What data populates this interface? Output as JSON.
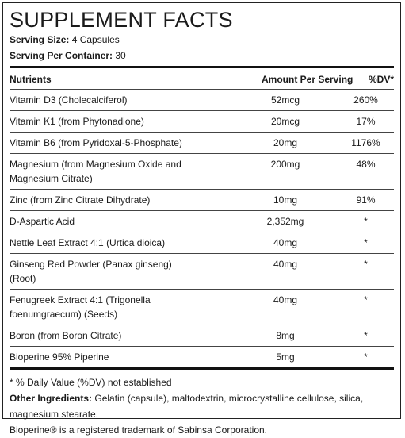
{
  "title": "SUPPLEMENT FACTS",
  "serving": [
    {
      "label": "Serving Size:",
      "value": "4 Capsules"
    },
    {
      "label": "Serving Per Container:",
      "value": "30"
    }
  ],
  "table": {
    "header": [
      "Nutrients",
      "Amount Per Serving",
      "%DV*"
    ],
    "rows": [
      [
        "Vitamin D3 (Cholecalciferol)",
        "52mcg",
        "260%"
      ],
      [
        "Vitamin K1 (from Phytonadione)",
        "20mcg",
        "17%"
      ],
      [
        "Vitamin B6 (from Pyridoxal-5-Phosphate)",
        "20mg",
        "1176%"
      ],
      [
        "Magnesium (from Magnesium Oxide and Magnesium Citrate)",
        "200mg",
        "48%"
      ],
      [
        "Zinc (from Zinc Citrate Dihydrate)",
        "10mg",
        "91%"
      ],
      [
        "D-Aspartic Acid",
        "2,352mg",
        "*"
      ],
      [
        "Nettle Leaf Extract 4:1 (Urtica dioica)",
        "40mg",
        "*"
      ],
      [
        "Ginseng Red Powder (Panax ginseng)(Root)",
        "40mg",
        "*"
      ],
      [
        "Fenugreek Extract 4:1 (Trigonella foenumgraecum) (Seeds)",
        "40mg",
        "*"
      ],
      [
        "Boron (from Boron Citrate)",
        "8mg",
        "*"
      ],
      [
        "Bioperine 95% Piperine",
        "5mg",
        "*"
      ]
    ]
  },
  "footnote": "* % Daily Value (%DV) not established",
  "other_ingredients": {
    "label": "Other Ingredients:",
    "text": "Gelatin (capsule), maltodextrin, microcrystalline cellulose, silica, magnesium stearate."
  },
  "trademark": "Bioperine® is a registered trademark of Sabinsa Corporation."
}
